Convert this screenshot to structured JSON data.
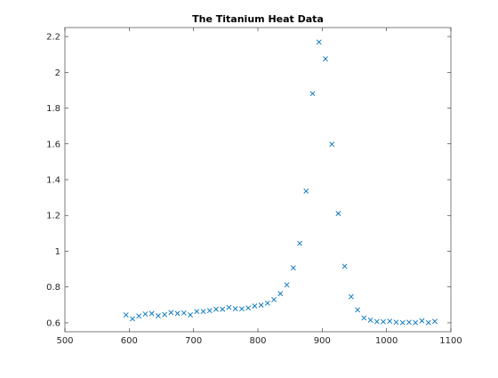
{
  "chart_data": {
    "type": "scatter",
    "title": "The Titanium Heat Data",
    "xlabel": "",
    "ylabel": "",
    "xlim": [
      500,
      1100
    ],
    "ylim": [
      0.55,
      2.25
    ],
    "grid": false,
    "legend": "none",
    "x_ticks": [
      500,
      600,
      700,
      800,
      900,
      1000,
      1100
    ],
    "x_tick_labels": [
      "500",
      "600",
      "700",
      "800",
      "900",
      "1000",
      "1100"
    ],
    "y_ticks": [
      0.6,
      0.8,
      1.0,
      1.2,
      1.4,
      1.6,
      1.8,
      2.0,
      2.2
    ],
    "y_tick_labels": [
      "0.6",
      "0.8",
      "1",
      "1.2",
      "1.4",
      "1.6",
      "1.8",
      "2",
      "2.2"
    ],
    "marker": "x",
    "marker_color": "#0072bd",
    "axis_color": "#262626",
    "series": [
      {
        "x": [
          595,
          605,
          615,
          625,
          635,
          645,
          655,
          665,
          675,
          685,
          695,
          705,
          715,
          725,
          735,
          745,
          755,
          765,
          775,
          785,
          795,
          805,
          815,
          825,
          835,
          845,
          855,
          865,
          875,
          885,
          895,
          905,
          915,
          925,
          935,
          945,
          955,
          965,
          975,
          985,
          995,
          1005,
          1015,
          1025,
          1035,
          1045,
          1055,
          1065,
          1075
        ],
        "y": [
          0.644,
          0.622,
          0.638,
          0.649,
          0.652,
          0.639,
          0.646,
          0.657,
          0.652,
          0.655,
          0.644,
          0.663,
          0.663,
          0.668,
          0.676,
          0.676,
          0.686,
          0.679,
          0.678,
          0.683,
          0.694,
          0.699,
          0.71,
          0.73,
          0.763,
          0.812,
          0.907,
          1.044,
          1.336,
          1.881,
          2.169,
          2.075,
          1.598,
          1.211,
          0.916,
          0.746,
          0.672,
          0.627,
          0.615,
          0.607,
          0.606,
          0.609,
          0.603,
          0.601,
          0.603,
          0.601,
          0.611,
          0.601,
          0.608
        ]
      }
    ]
  }
}
